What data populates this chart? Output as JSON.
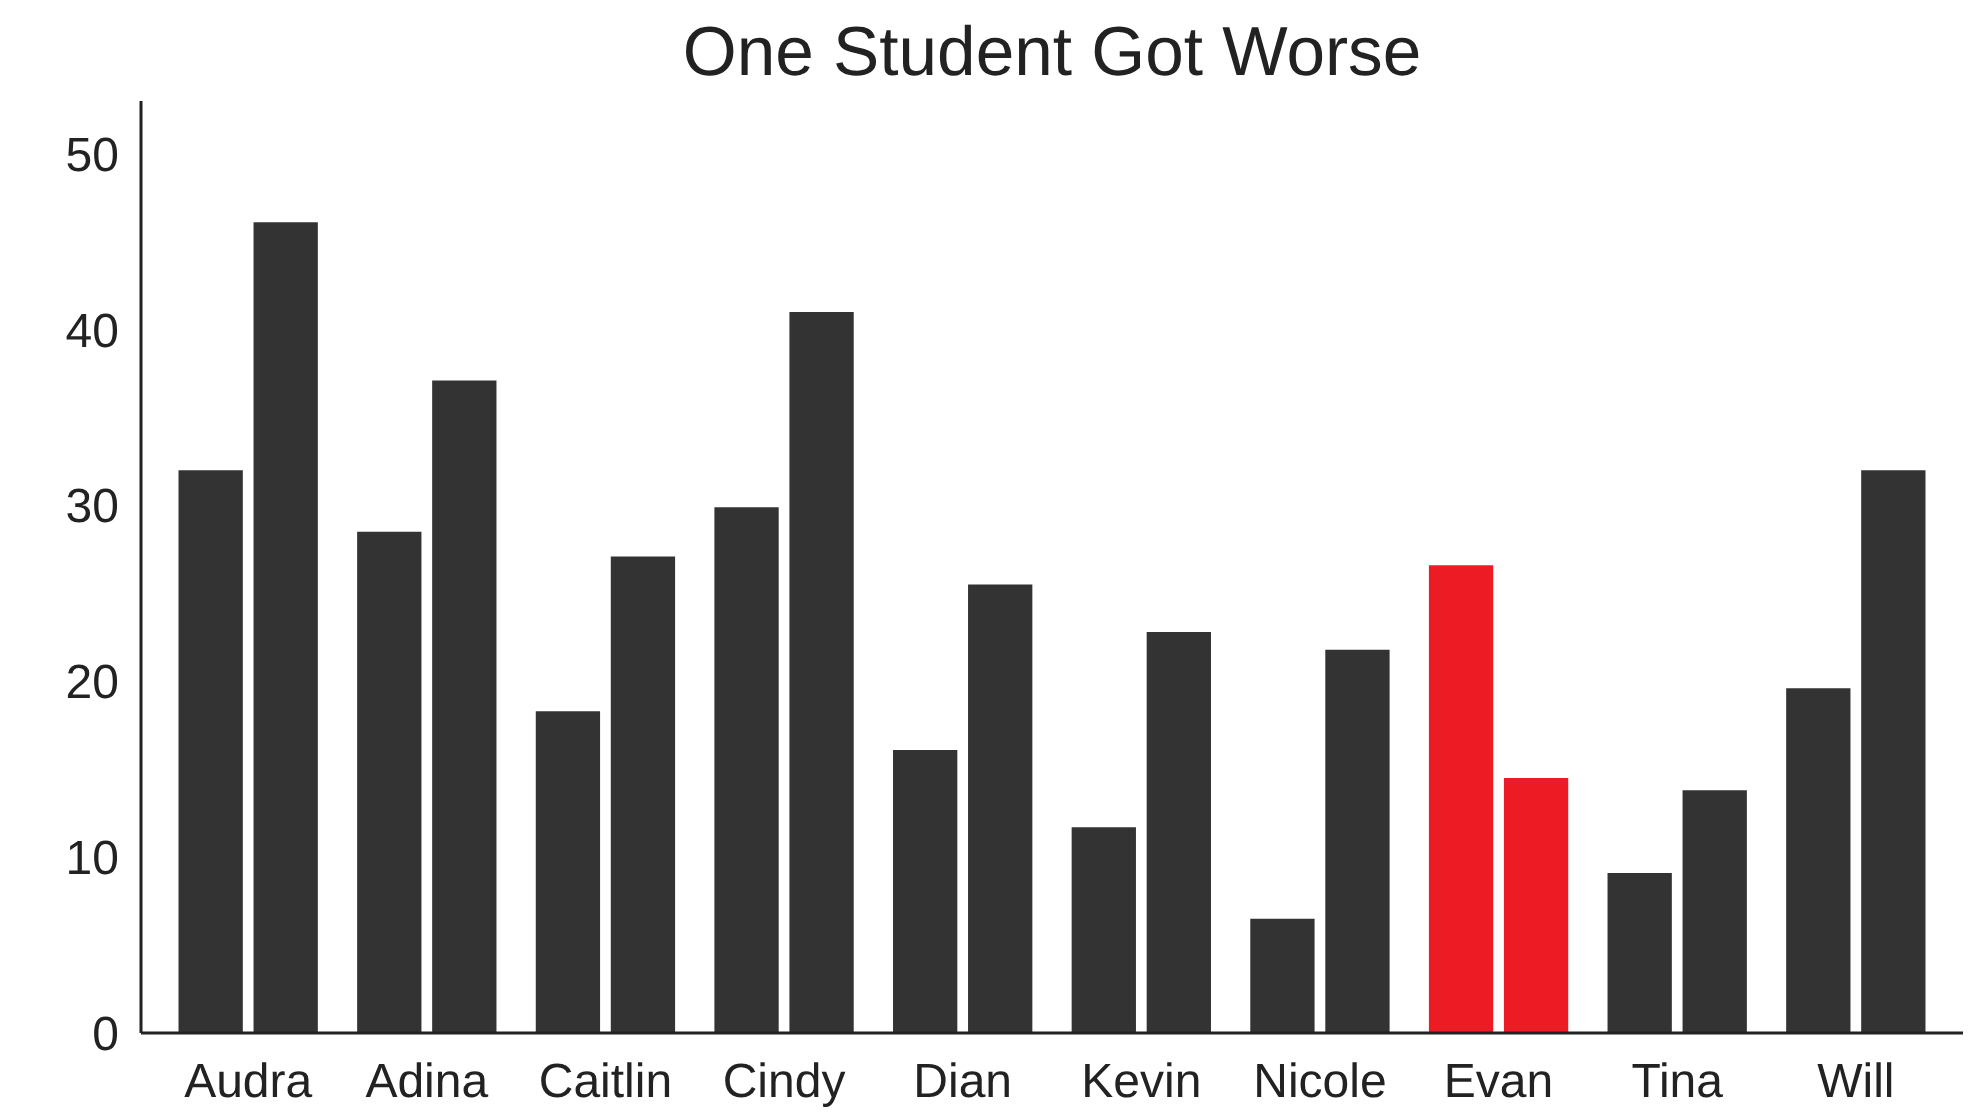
{
  "chart_data": {
    "type": "bar",
    "title": "One Student Got Worse",
    "categories": [
      "Audra",
      "Adina",
      "Caitlin",
      "Cindy",
      "Dian",
      "Kevin",
      "Nicole",
      "Evan",
      "Tina",
      "Will"
    ],
    "series": [
      {
        "colors": [
          "#333333",
          "#333333",
          "#333333",
          "#333333",
          "#333333",
          "#333333",
          "#333333",
          "#ed1c24",
          "#333333",
          "#333333"
        ],
        "values": [
          32,
          28.5,
          18.3,
          29.9,
          16.1,
          11.7,
          6.5,
          26.6,
          9.1,
          19.6
        ]
      },
      {
        "colors": [
          "#333333",
          "#333333",
          "#333333",
          "#333333",
          "#333333",
          "#333333",
          "#333333",
          "#ed1c24",
          "#333333",
          "#333333"
        ],
        "values": [
          46.1,
          37.1,
          27.1,
          41,
          25.5,
          22.8,
          21.8,
          14.5,
          13.8,
          32
        ]
      }
    ],
    "ylim": [
      0,
      53
    ],
    "yticks": [
      0,
      10,
      20,
      30,
      40,
      50
    ],
    "grid": false
  }
}
